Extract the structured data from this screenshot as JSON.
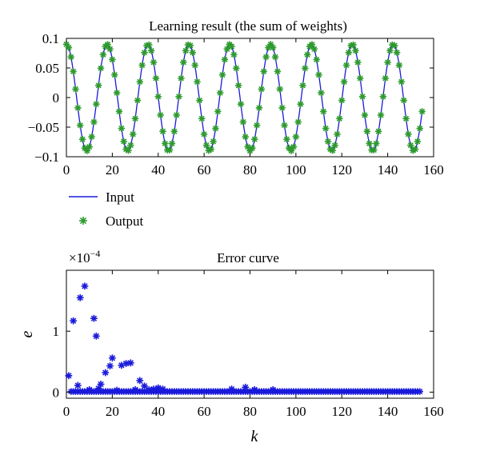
{
  "chart_data": [
    {
      "type": "line",
      "title": "Learning result (the sum of weights)",
      "xlabel": "",
      "ylabel": "",
      "xlim": [
        0,
        160
      ],
      "ylim": [
        -0.1,
        0.1
      ],
      "xticks": [
        0,
        20,
        40,
        60,
        80,
        100,
        120,
        140,
        160
      ],
      "yticks": [
        0.1,
        0.05,
        0,
        -0.05,
        -0.1
      ],
      "ytick_labels": [
        "0.1",
        "0.05",
        "0",
        "−0.05",
        "−0.1"
      ],
      "grid": false,
      "legend": "below",
      "period": 17.8,
      "amplitude": 0.09,
      "k_max": 155,
      "series": [
        {
          "name": "Input",
          "style": "line",
          "color": "#1a1adb"
        },
        {
          "name": "Output",
          "style": "marker",
          "color": "#2e9a2e"
        }
      ]
    },
    {
      "type": "scatter",
      "title": "Error curve",
      "xlabel": "k",
      "ylabel": "e",
      "scale_label": "×10",
      "scale_exp": "−4",
      "xlim": [
        0,
        160
      ],
      "ylim": [
        -0.1,
        2.0
      ],
      "xticks": [
        0,
        20,
        40,
        60,
        80,
        100,
        120,
        140,
        160
      ],
      "yticks": [
        0,
        1
      ],
      "grid": false,
      "color": "#1a1adb",
      "points": [
        [
          1,
          0.27
        ],
        [
          3,
          1.17
        ],
        [
          5,
          0.11
        ],
        [
          6,
          1.55
        ],
        [
          8,
          1.74
        ],
        [
          10,
          0.04
        ],
        [
          12,
          1.21
        ],
        [
          13,
          0.92
        ],
        [
          14,
          0.06
        ],
        [
          15,
          0.13
        ],
        [
          17,
          0.32
        ],
        [
          19,
          0.43
        ],
        [
          20,
          0.56
        ],
        [
          22,
          0.03
        ],
        [
          24,
          0.44
        ],
        [
          26,
          0.47
        ],
        [
          28,
          0.48
        ],
        [
          30,
          0.04
        ],
        [
          32,
          0.19
        ],
        [
          34,
          0.1
        ],
        [
          36,
          0.04
        ],
        [
          38,
          0.05
        ],
        [
          40,
          0.07
        ],
        [
          42,
          0.05
        ],
        [
          72,
          0.05
        ],
        [
          78,
          0.08
        ],
        [
          82,
          0.04
        ],
        [
          90,
          0.04
        ]
      ],
      "baseline": {
        "from": 2,
        "to": 154,
        "step": 1,
        "value": 0.01
      }
    }
  ]
}
